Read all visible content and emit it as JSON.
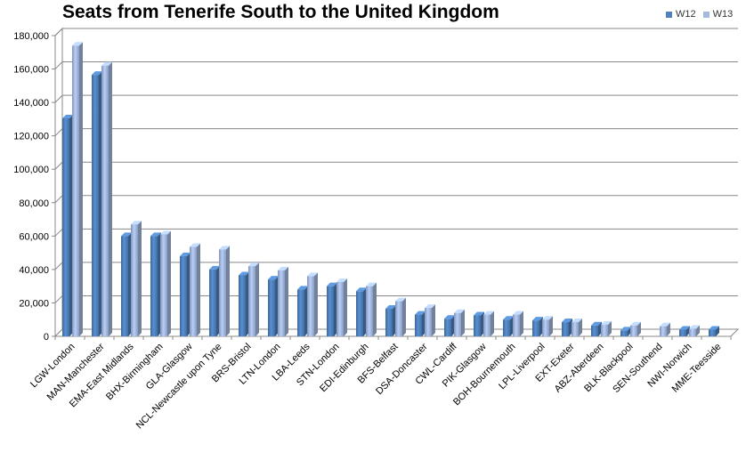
{
  "chart_data": {
    "type": "bar",
    "title": "Seats from Tenerife South to the United Kingdom",
    "xlabel": "",
    "ylabel": "",
    "ylim": [
      0,
      180000
    ],
    "yticks": [
      "0",
      "20,000",
      "40,000",
      "60,000",
      "80,000",
      "100,000",
      "120,000",
      "140,000",
      "160,000",
      "180,000"
    ],
    "grid": true,
    "legend_position": "top-right",
    "categories": [
      "LGW-London",
      "MAN-Manchester",
      "EMA-East Midlands",
      "BHX-Birmingham",
      "GLA-Glasgow",
      "NCL-Newcastle upon Tyne",
      "BRS-Bristol",
      "LTN-London",
      "LBA-Leeds",
      "STN-London",
      "EDI-Edinburgh",
      "BFS-Belfast",
      "DSA-Doncaster",
      "CWL-Cardiff",
      "PIK-Glasgow",
      "BOH-Bournemouth",
      "LPL-Liverpool",
      "EXT-Exeter",
      "ABZ-Aberdeen",
      "BLK-Blackpool",
      "SEN-Southend",
      "NWI-Norwich",
      "MME-Teesside"
    ],
    "series": [
      {
        "name": "W12",
        "color": "#4f81bd",
        "values": [
          130500,
          156500,
          60000,
          60000,
          48000,
          40000,
          36500,
          34000,
          28000,
          30000,
          27000,
          16500,
          13000,
          10500,
          12500,
          10000,
          9500,
          8500,
          6500,
          3500,
          0,
          4000,
          4000
        ]
      },
      {
        "name": "W13",
        "color": "#a3b9e0",
        "values": [
          174000,
          162000,
          67000,
          61000,
          53500,
          52000,
          42000,
          39500,
          36000,
          32500,
          30000,
          21000,
          17000,
          14000,
          13000,
          13000,
          10000,
          8500,
          7000,
          6500,
          6000,
          4500,
          0
        ]
      }
    ]
  }
}
